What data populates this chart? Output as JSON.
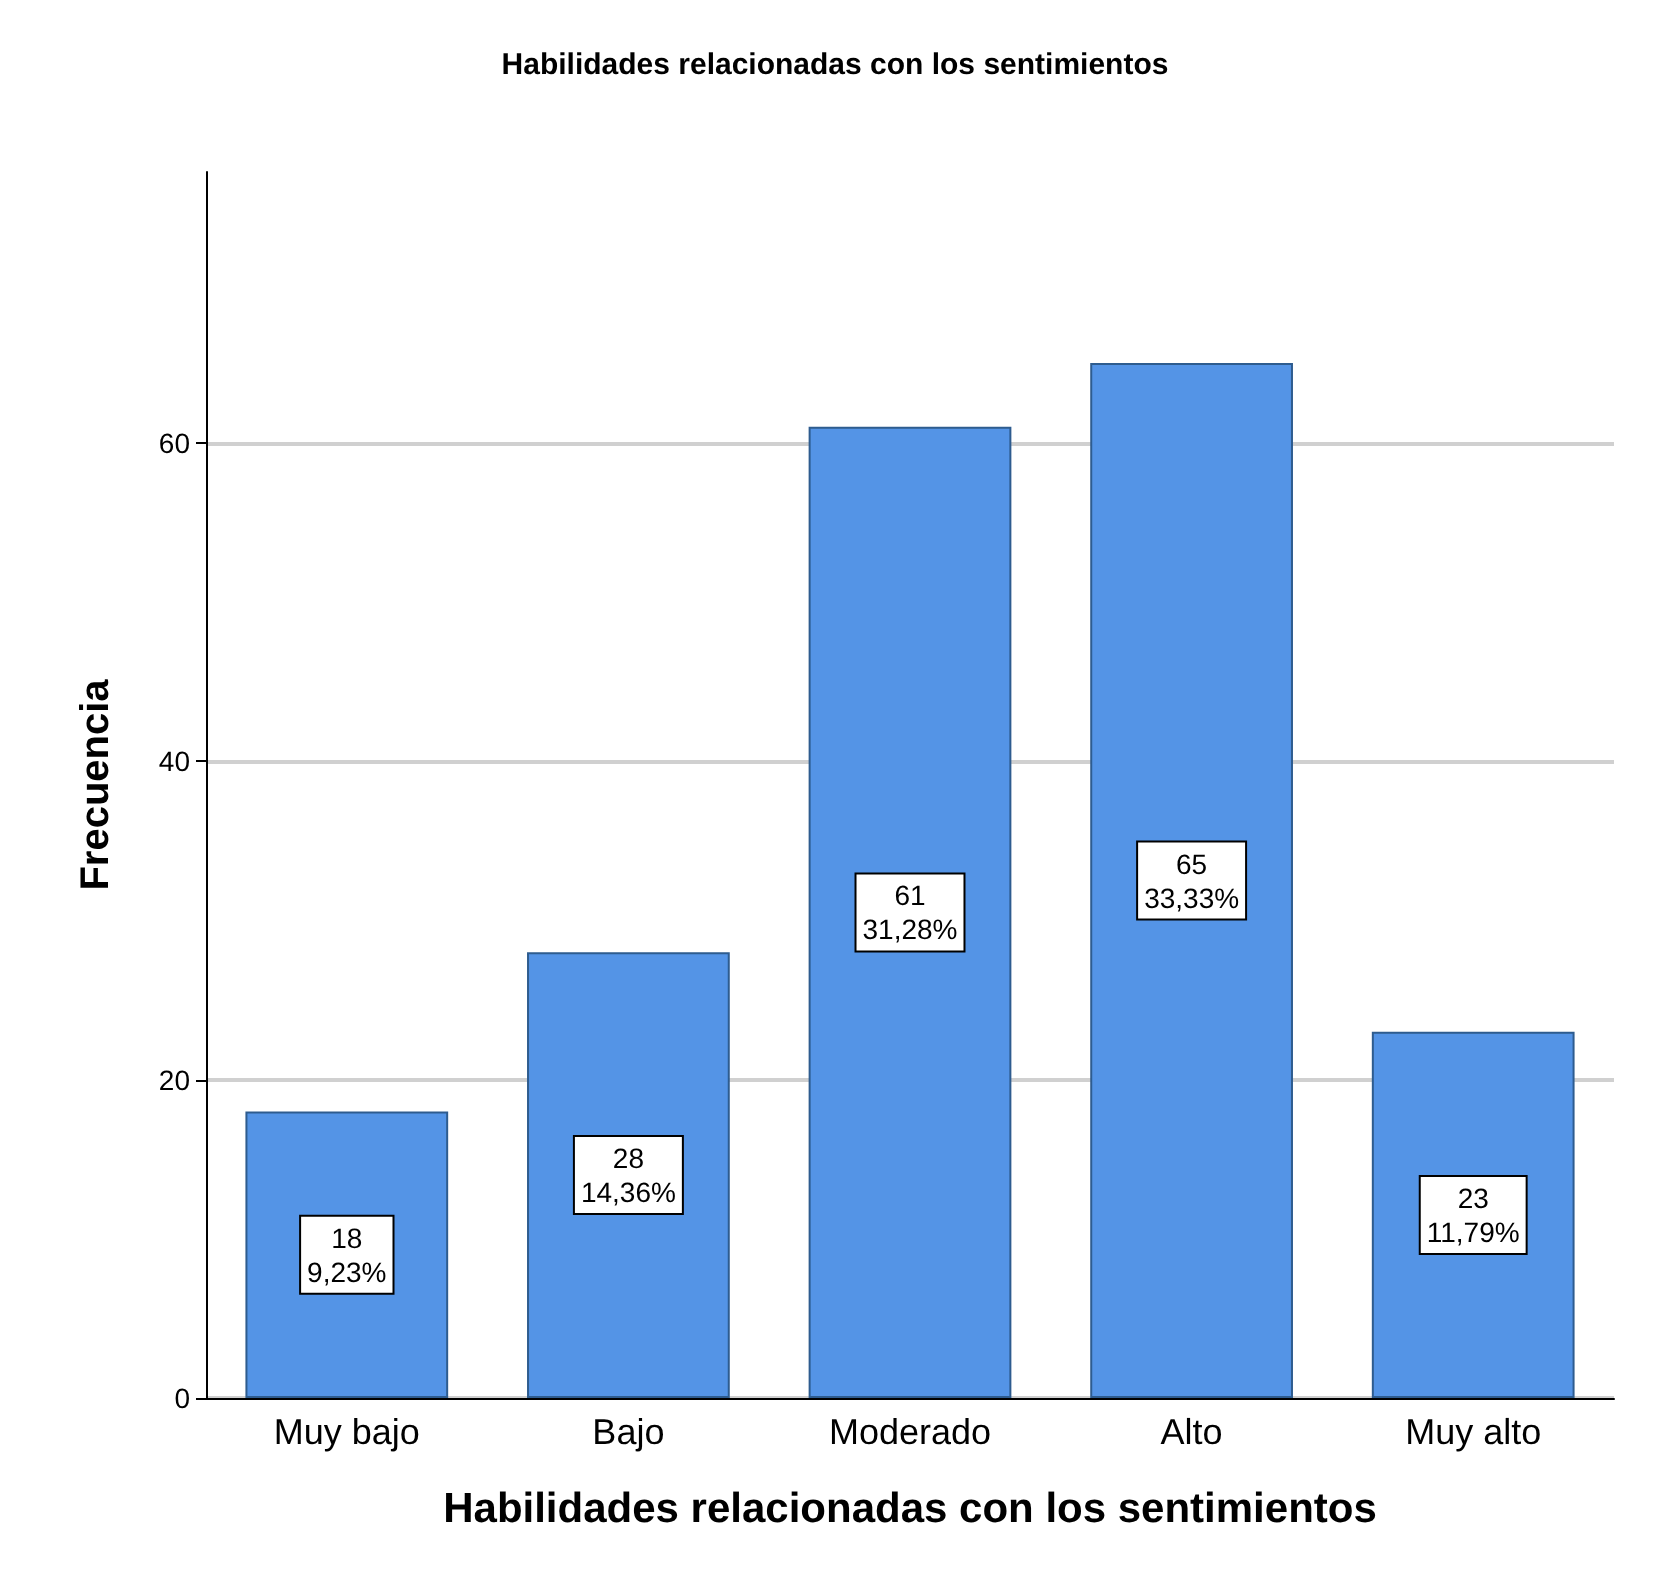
{
  "chart_data": {
    "type": "bar",
    "title": "Habilidades relacionadas con los sentimientos",
    "xlabel": "Habilidades relacionadas con los sentimientos",
    "ylabel": "Frecuencia",
    "categories": [
      "Muy bajo",
      "Bajo",
      "Moderado",
      "Alto",
      "Muy alto"
    ],
    "values": [
      18,
      28,
      61,
      65,
      23
    ],
    "value_labels": [
      "18\n9,23%",
      "28\n14,36%",
      "61\n31,28%",
      "65\n33,33%",
      "23\n11,79%"
    ],
    "color": "#5494e6",
    "ylim": [
      0,
      77
    ],
    "yticks": [
      0,
      20,
      40,
      60
    ],
    "grid": "y"
  }
}
